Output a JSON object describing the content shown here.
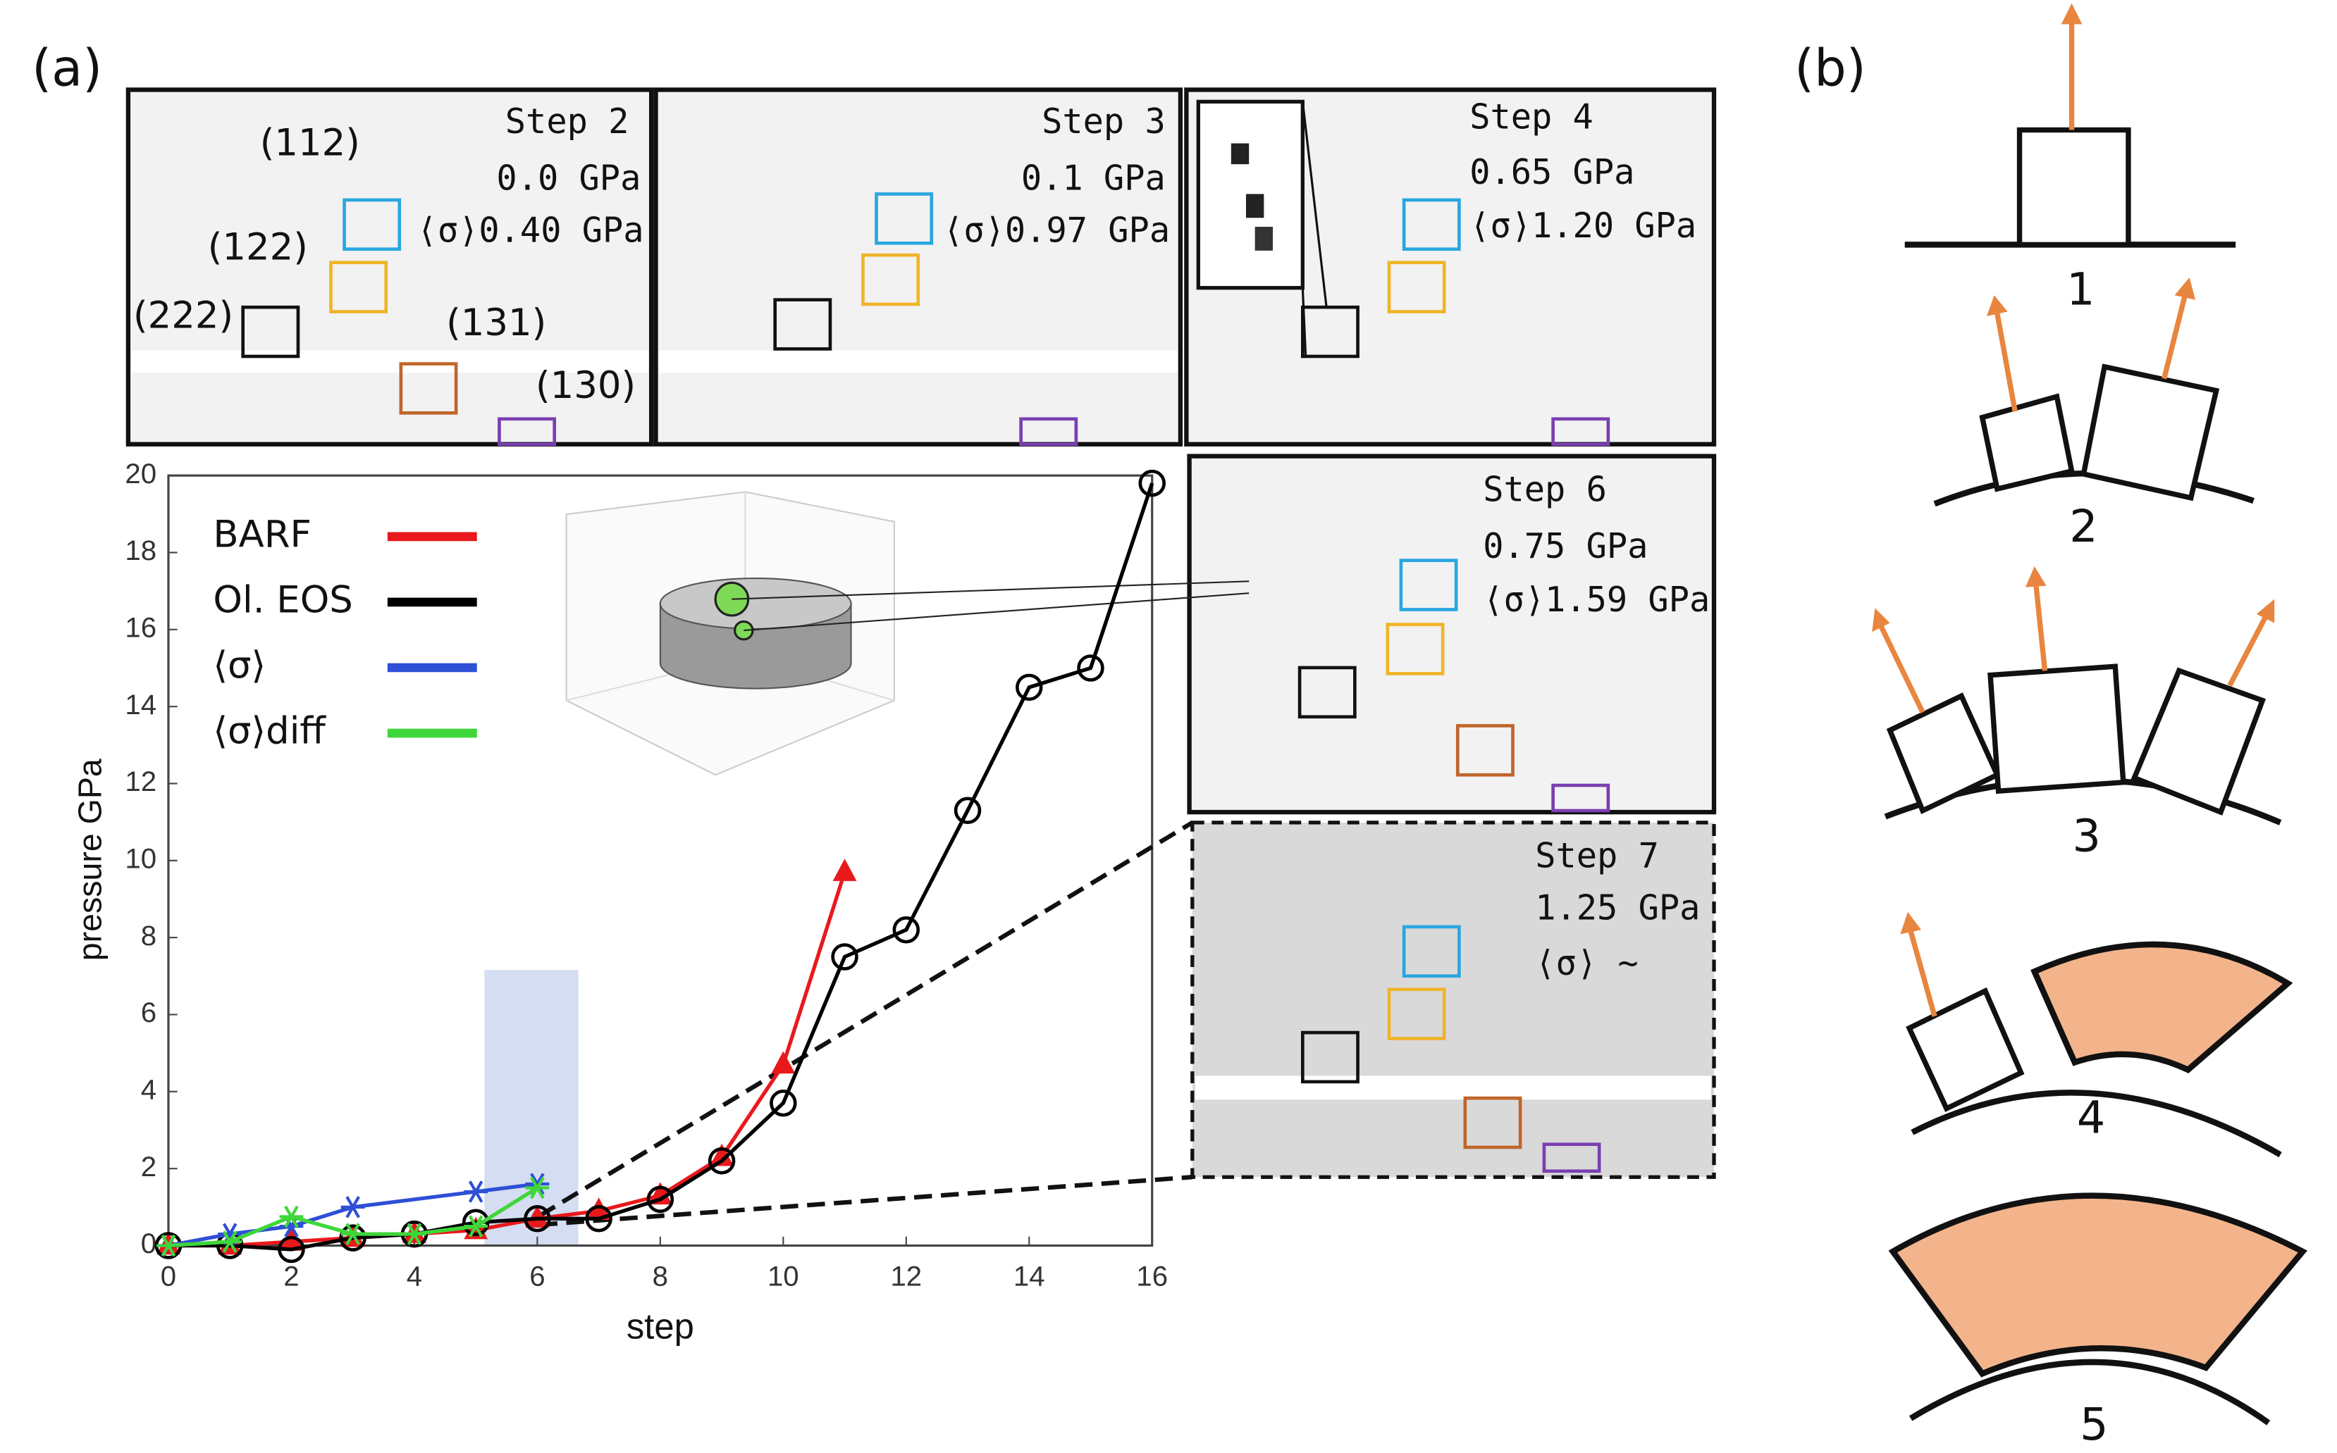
{
  "panel_labels": [
    "(a)",
    "(b)"
  ],
  "chart_data": {
    "type": "line",
    "xlabel": "step",
    "ylabel": "pressure GPa",
    "xlim": [
      0,
      16
    ],
    "ylim": [
      0,
      20
    ],
    "xticks": [
      0,
      2,
      4,
      6,
      8,
      10,
      12,
      14,
      16
    ],
    "yticks": [
      0,
      2,
      4,
      6,
      8,
      10,
      12,
      14,
      16,
      18,
      20
    ],
    "series": [
      {
        "name": "BARF",
        "color": "#e8191c",
        "marker": "triangle",
        "x": [
          0,
          1,
          2,
          3,
          4,
          5,
          6,
          7,
          8,
          9,
          10,
          11
        ],
        "values": [
          0,
          0,
          0.1,
          0.2,
          0.3,
          0.4,
          0.7,
          0.9,
          1.3,
          2.3,
          4.7,
          9.7
        ]
      },
      {
        "name": "Ol. EOS",
        "color": "#000000",
        "marker": "circle",
        "x": [
          0,
          1,
          2,
          3,
          4,
          5,
          6,
          7,
          8,
          9,
          10,
          11,
          12,
          13,
          14,
          15,
          16
        ],
        "values": [
          0,
          0,
          -0.1,
          0.2,
          0.3,
          0.6,
          0.7,
          0.7,
          1.2,
          2.2,
          3.7,
          7.5,
          8.2,
          11.3,
          14.5,
          15,
          19.8
        ]
      },
      {
        "name": "⟨σ⟩",
        "color": "#2e4fd6",
        "marker": "star",
        "x": [
          0,
          1,
          2,
          3,
          5,
          6
        ],
        "values": [
          0,
          0.3,
          0.5,
          1.0,
          1.4,
          1.6
        ]
      },
      {
        "name": "⟨σ⟩diff",
        "color": "#3fd63a",
        "marker": "star",
        "x": [
          0,
          1,
          2,
          3,
          4,
          5,
          6
        ],
        "values": [
          0,
          0.1,
          0.75,
          0.3,
          0.3,
          0.5,
          1.5
        ]
      }
    ]
  },
  "diffraction_panels": [
    {
      "step": "Step 2",
      "pressure": "0.0 GPa",
      "stress": "⟨σ⟩0.40 GPa"
    },
    {
      "step": "Step 3",
      "pressure": "0.1 GPa",
      "stress": "⟨σ⟩0.97 GPa"
    },
    {
      "step": "Step 4",
      "pressure": "0.65 GPa",
      "stress": "⟨σ⟩1.20 GPa"
    },
    {
      "step": "Step 6",
      "pressure": "0.75 GPa",
      "stress": "⟨σ⟩1.59 GPa"
    },
    {
      "step": "Step 7",
      "pressure": "1.25 GPa",
      "stress": "⟨σ⟩ ~"
    }
  ],
  "peak_labels": [
    "(112)",
    "(122)",
    "(222)",
    "(131)",
    "(130)"
  ],
  "schematic_labels": [
    "1",
    "2",
    "3",
    "4",
    "5"
  ]
}
